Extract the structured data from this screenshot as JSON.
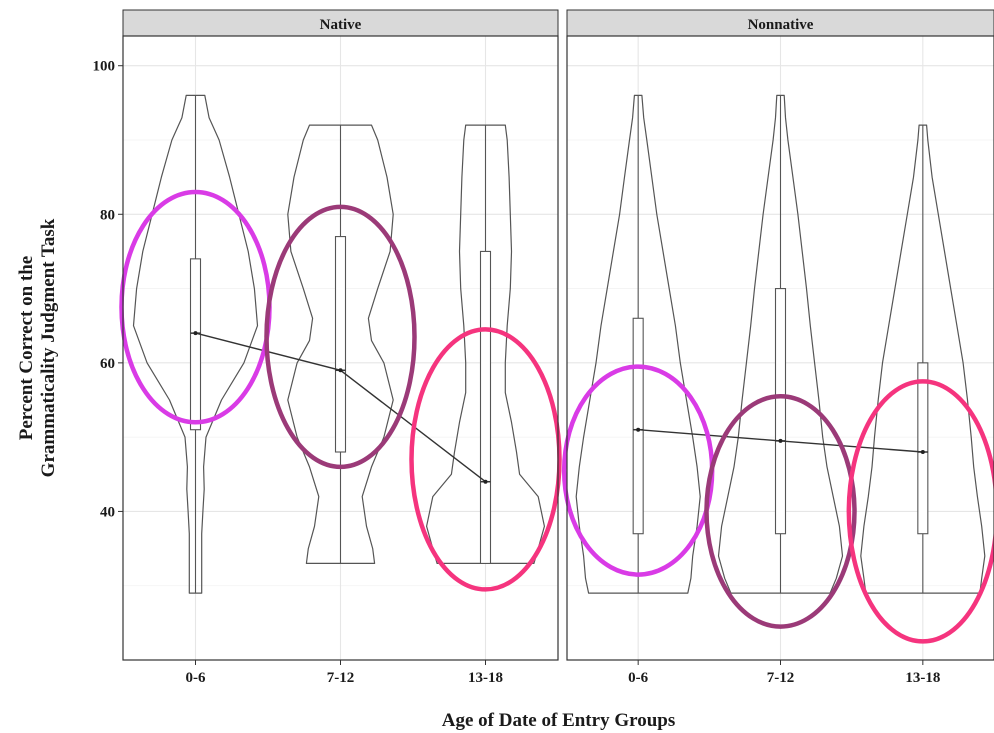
{
  "chart_data": {
    "type": "violin",
    "xlabel": "Age of Date of Entry Groups",
    "ylabel_lines": [
      "Percent Correct on the",
      "Grammaticality Judgment Task"
    ],
    "ylim": [
      20,
      104
    ],
    "yticks": [
      40,
      60,
      80,
      100
    ],
    "categories": [
      "0-6",
      "7-12",
      "13-18"
    ],
    "grid": true,
    "panels": [
      {
        "name": "Native",
        "groups": [
          {
            "category": "0-6",
            "min": 29,
            "q1": 51,
            "median": 64,
            "q3": 74,
            "max": 96,
            "density": [
              [
                29,
                0.1
              ],
              [
                33,
                0.1
              ],
              [
                37,
                0.1
              ],
              [
                40,
                0.12
              ],
              [
                43,
                0.14
              ],
              [
                46,
                0.13
              ],
              [
                50,
                0.17
              ],
              [
                55,
                0.42
              ],
              [
                60,
                0.78
              ],
              [
                65,
                1.0
              ],
              [
                70,
                0.95
              ],
              [
                75,
                0.85
              ],
              [
                80,
                0.7
              ],
              [
                85,
                0.55
              ],
              [
                90,
                0.38
              ],
              [
                93,
                0.22
              ],
              [
                96,
                0.15
              ]
            ],
            "ellipse": {
              "color": "#d93be6",
              "cy": 67.5,
              "ry": 15.5
            }
          },
          {
            "category": "7-12",
            "min": 33,
            "q1": 48,
            "median": 59,
            "q3": 77,
            "max": 92,
            "density": [
              [
                33,
                0.55
              ],
              [
                35,
                0.52
              ],
              [
                38,
                0.42
              ],
              [
                42,
                0.35
              ],
              [
                46,
                0.5
              ],
              [
                50,
                0.7
              ],
              [
                55,
                0.85
              ],
              [
                60,
                0.7
              ],
              [
                63,
                0.5
              ],
              [
                66,
                0.45
              ],
              [
                70,
                0.6
              ],
              [
                75,
                0.8
              ],
              [
                80,
                0.85
              ],
              [
                85,
                0.75
              ],
              [
                90,
                0.6
              ],
              [
                92,
                0.5
              ]
            ],
            "ellipse": {
              "color": "#9b3a78",
              "cy": 63.5,
              "ry": 17.5
            }
          },
          {
            "category": "13-18",
            "min": 33,
            "q1": 33,
            "median": 44,
            "q3": 75,
            "max": 92,
            "density": [
              [
                33,
                0.78
              ],
              [
                35,
                0.85
              ],
              [
                38,
                0.95
              ],
              [
                42,
                0.85
              ],
              [
                45,
                0.55
              ],
              [
                48,
                0.5
              ],
              [
                52,
                0.42
              ],
              [
                56,
                0.32
              ],
              [
                60,
                0.32
              ],
              [
                65,
                0.35
              ],
              [
                70,
                0.4
              ],
              [
                75,
                0.42
              ],
              [
                80,
                0.4
              ],
              [
                85,
                0.38
              ],
              [
                90,
                0.35
              ],
              [
                92,
                0.32
              ]
            ],
            "ellipse": {
              "color": "#f5347e",
              "cy": 47,
              "ry": 17.5
            }
          }
        ],
        "medians": [
          64,
          59,
          44
        ]
      },
      {
        "name": "Nonnative",
        "groups": [
          {
            "category": "0-6",
            "min": 29,
            "q1": 37,
            "median": 51,
            "q3": 66,
            "max": 96,
            "density": [
              [
                29,
                0.8
              ],
              [
                31,
                0.85
              ],
              [
                34,
                0.88
              ],
              [
                38,
                0.95
              ],
              [
                42,
                1.0
              ],
              [
                46,
                0.95
              ],
              [
                50,
                0.88
              ],
              [
                55,
                0.78
              ],
              [
                60,
                0.68
              ],
              [
                65,
                0.6
              ],
              [
                70,
                0.5
              ],
              [
                75,
                0.4
              ],
              [
                80,
                0.3
              ],
              [
                85,
                0.22
              ],
              [
                90,
                0.14
              ],
              [
                93,
                0.09
              ],
              [
                96,
                0.06
              ]
            ],
            "ellipse": {
              "color": "#d93be6",
              "cy": 45.5,
              "ry": 14
            }
          },
          {
            "category": "7-12",
            "min": 29,
            "q1": 37,
            "median": 49.5,
            "q3": 70,
            "max": 96,
            "density": [
              [
                29,
                0.8
              ],
              [
                31,
                0.9
              ],
              [
                34,
                1.0
              ],
              [
                38,
                0.95
              ],
              [
                42,
                0.85
              ],
              [
                46,
                0.75
              ],
              [
                50,
                0.68
              ],
              [
                55,
                0.62
              ],
              [
                60,
                0.55
              ],
              [
                65,
                0.48
              ],
              [
                70,
                0.42
              ],
              [
                75,
                0.35
              ],
              [
                80,
                0.28
              ],
              [
                85,
                0.2
              ],
              [
                90,
                0.12
              ],
              [
                93,
                0.08
              ],
              [
                96,
                0.06
              ]
            ],
            "ellipse": {
              "color": "#9b3a78",
              "cy": 40,
              "ry": 15.5
            }
          },
          {
            "category": "13-18",
            "min": 29,
            "q1": 37,
            "median": 48,
            "q3": 60,
            "max": 92,
            "density": [
              [
                29,
                0.92
              ],
              [
                31,
                0.95
              ],
              [
                34,
                1.0
              ],
              [
                38,
                0.95
              ],
              [
                42,
                0.88
              ],
              [
                46,
                0.82
              ],
              [
                50,
                0.78
              ],
              [
                55,
                0.72
              ],
              [
                60,
                0.65
              ],
              [
                65,
                0.55
              ],
              [
                70,
                0.45
              ],
              [
                75,
                0.35
              ],
              [
                80,
                0.25
              ],
              [
                85,
                0.15
              ],
              [
                90,
                0.08
              ],
              [
                92,
                0.06
              ]
            ],
            "ellipse": {
              "color": "#f5347e",
              "cy": 40,
              "ry": 17.5
            }
          }
        ],
        "medians": [
          51,
          49.5,
          48
        ]
      }
    ]
  }
}
